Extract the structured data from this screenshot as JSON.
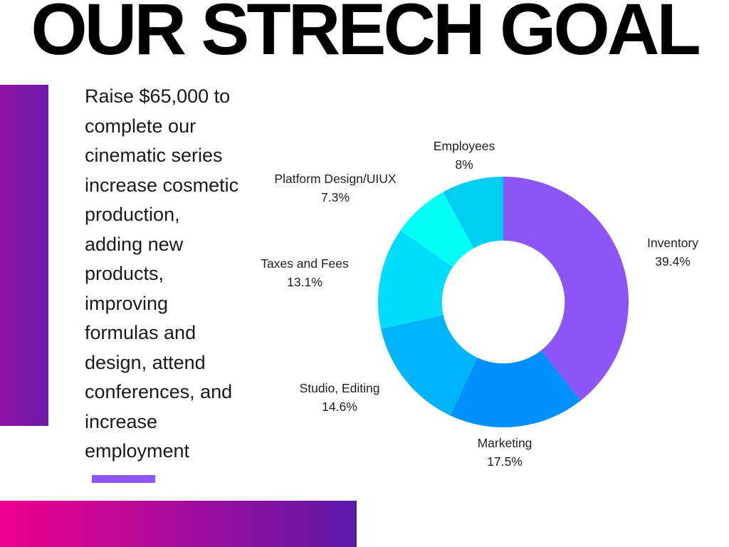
{
  "title": "OUR STRECH GOAL",
  "intro": {
    "text": "Raise $65,000 to\ncomplete our\ncinematic series\nincrease cosmetic\nproduction,\nadding new\nproducts,\nimproving\nformulas and\ndesign, attend\nconferences, and\nincrease\nemployment"
  },
  "accents": {
    "left_bar": {
      "from": "#9013A4",
      "to": "#6C1BAC"
    },
    "bottom_bar": {
      "from": "#F1008F",
      "to": "#5C19A9"
    },
    "underline": "#8C55FB"
  },
  "chart_data": {
    "type": "pie",
    "donut": true,
    "inner_radius_ratio": 0.49,
    "start_angle": "12-oclock",
    "direction": "clockwise",
    "legend_position": "labels-around",
    "segments": [
      {
        "label": "Inventory",
        "value": 39.4,
        "pct_text": "39.4%",
        "color": "#8C55F6"
      },
      {
        "label": "Marketing",
        "value": 17.5,
        "pct_text": "17.5%",
        "color": "#0090FB"
      },
      {
        "label": "Studio, Editing",
        "value": 14.6,
        "pct_text": "14.6%",
        "color": "#00B4F8"
      },
      {
        "label": "Taxes and Fees",
        "value": 13.1,
        "pct_text": "13.1%",
        "color": "#00DCFB"
      },
      {
        "label": "Platform Design/UIUX",
        "value": 7.3,
        "pct_text": "7.3%",
        "color": "#00FFF7"
      },
      {
        "label": "Employees",
        "value": 8,
        "pct_text": "8%",
        "color": "#00CEF0"
      }
    ]
  }
}
